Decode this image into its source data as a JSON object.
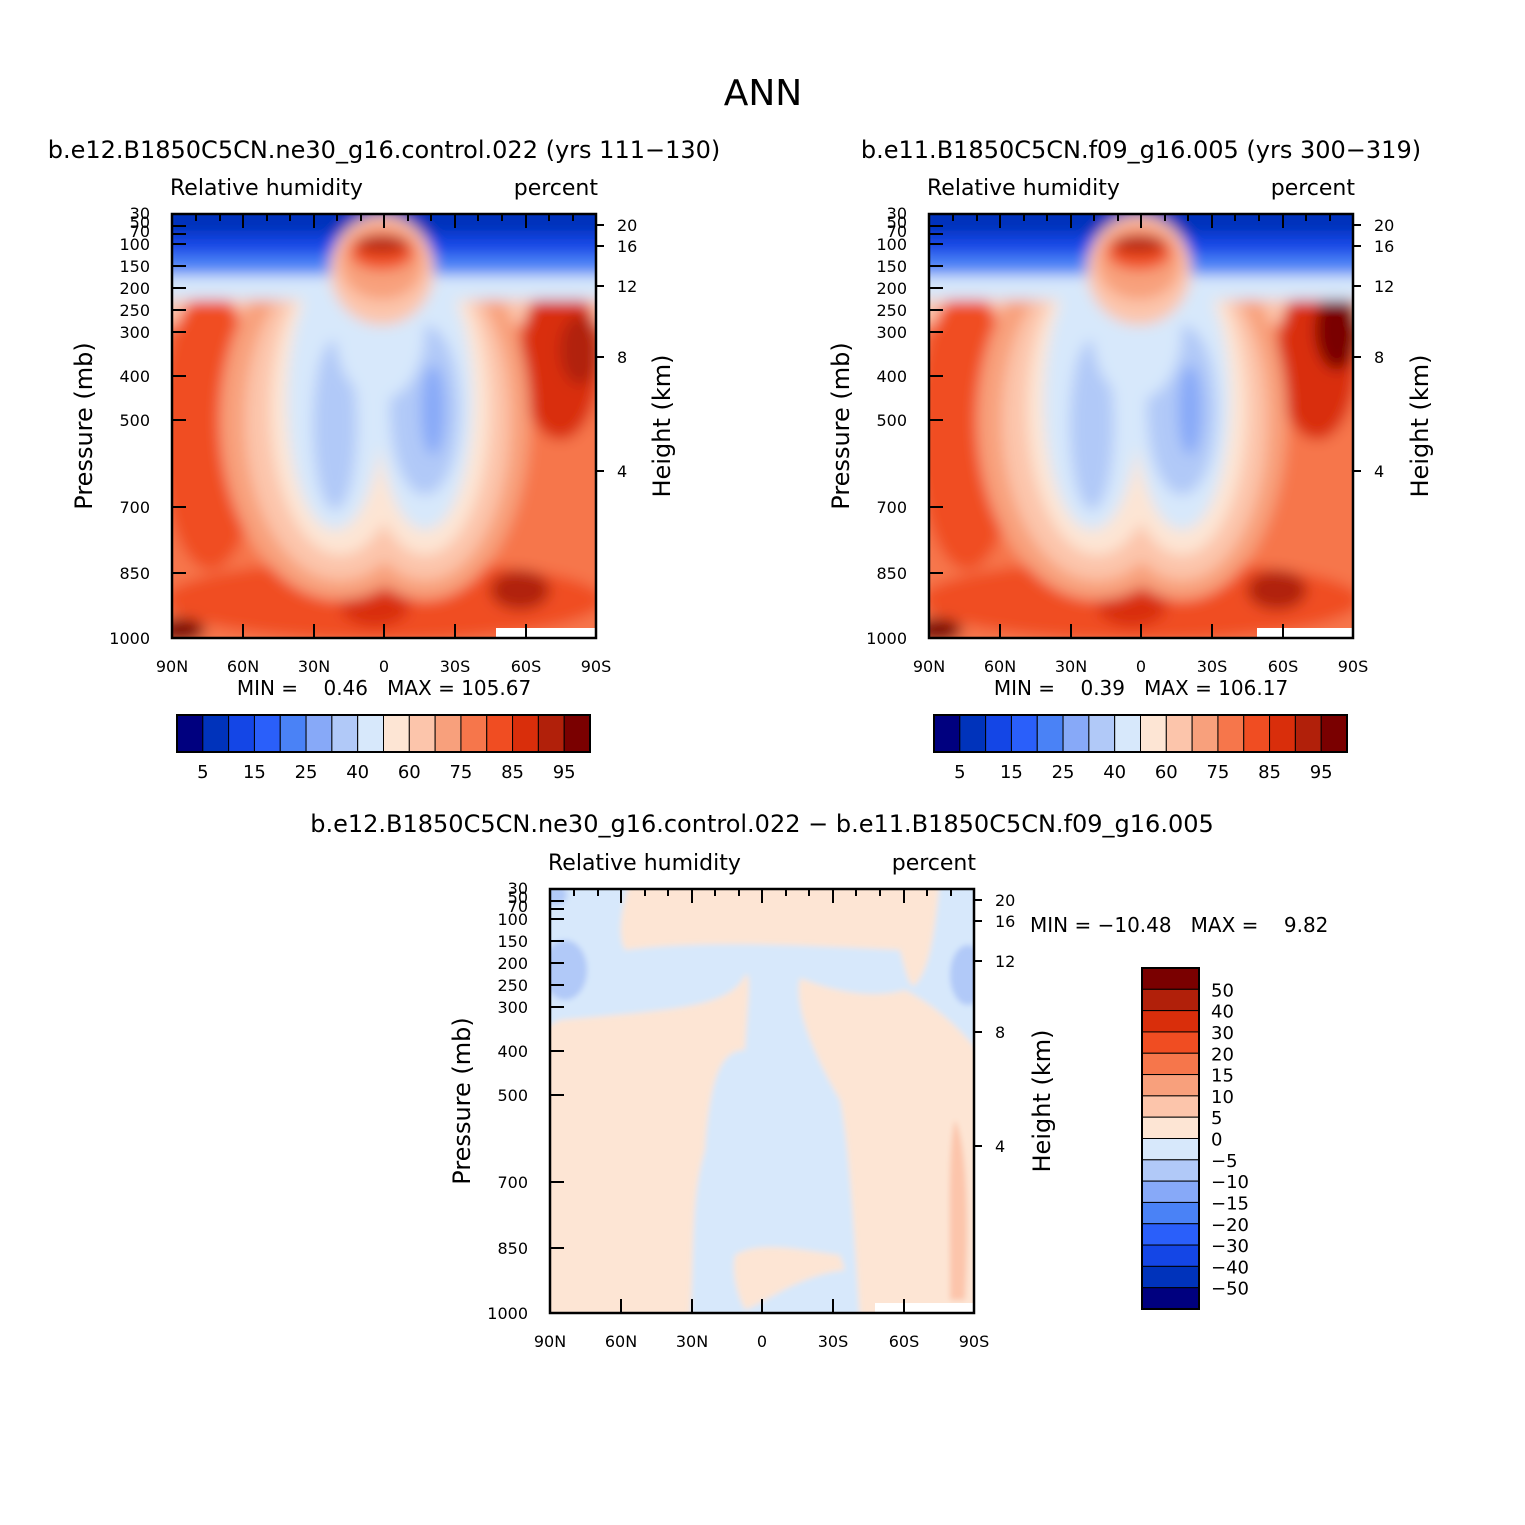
{
  "page": {
    "title": "ANN"
  },
  "chart_data": [
    {
      "type": "heatmap",
      "panel": "left",
      "title": "b.e12.B1850C5CN.ne30_g16.control.022 (yrs 111-130)",
      "variable": "Relative humidity",
      "units": "percent",
      "xlabel": "",
      "ylabel": "Pressure (mb)",
      "ylabel_right": "Height (km)",
      "x_ticks": [
        "90N",
        "60N",
        "30N",
        "0",
        "30S",
        "60S",
        "90S"
      ],
      "y_ticks": [
        "30",
        "50",
        "70",
        "100",
        "150",
        "200",
        "250",
        "300",
        "400",
        "500",
        "700",
        "850",
        "1000"
      ],
      "y_ticks_right": [
        "20",
        "16",
        "12",
        "8",
        "4"
      ],
      "yscale": "log",
      "min_text": "MIN =    0.46   MAX = 105.67",
      "min": 0.46,
      "max": 105.67,
      "colorbar": {
        "orientation": "horizontal",
        "colors": [
          "#00007f",
          "#0033bb",
          "#1446e6",
          "#2a5ffa",
          "#4a82f6",
          "#87a9f8",
          "#b1c9f8",
          "#d7e8fb",
          "#fde5d4",
          "#fcc5ab",
          "#f8a07c",
          "#f6764b",
          "#f04d22",
          "#d92e0b",
          "#b1200a",
          "#7a0000"
        ],
        "labels": [
          "5",
          "15",
          "25",
          "40",
          "60",
          "75",
          "85",
          "95"
        ]
      }
    },
    {
      "type": "heatmap",
      "panel": "right",
      "title": "b.e11.B1850C5CN.f09_g16.005 (yrs 300-319)",
      "variable": "Relative humidity",
      "units": "percent",
      "xlabel": "",
      "ylabel": "Pressure (mb)",
      "ylabel_right": "Height (km)",
      "x_ticks": [
        "90N",
        "60N",
        "30N",
        "0",
        "30S",
        "60S",
        "90S"
      ],
      "y_ticks": [
        "30",
        "50",
        "70",
        "100",
        "150",
        "200",
        "250",
        "300",
        "400",
        "500",
        "700",
        "850",
        "1000"
      ],
      "y_ticks_right": [
        "20",
        "16",
        "12",
        "8",
        "4"
      ],
      "yscale": "log",
      "min_text": "MIN =    0.39   MAX = 106.17",
      "min": 0.39,
      "max": 106.17,
      "colorbar": {
        "orientation": "horizontal",
        "colors": [
          "#00007f",
          "#0033bb",
          "#1446e6",
          "#2a5ffa",
          "#4a82f6",
          "#87a9f8",
          "#b1c9f8",
          "#d7e8fb",
          "#fde5d4",
          "#fcc5ab",
          "#f8a07c",
          "#f6764b",
          "#f04d22",
          "#d92e0b",
          "#b1200a",
          "#7a0000"
        ],
        "labels": [
          "5",
          "15",
          "25",
          "40",
          "60",
          "75",
          "85",
          "95"
        ]
      }
    },
    {
      "type": "heatmap",
      "panel": "difference",
      "title": "b.e12.B1850C5CN.ne30_g16.control.022 - b.e11.B1850C5CN.f09_g16.005",
      "variable": "Relative humidity",
      "units": "percent",
      "xlabel": "",
      "ylabel": "Pressure (mb)",
      "ylabel_right": "Height (km)",
      "x_ticks": [
        "90N",
        "60N",
        "30N",
        "0",
        "30S",
        "60S",
        "90S"
      ],
      "y_ticks": [
        "30",
        "50",
        "70",
        "100",
        "150",
        "200",
        "250",
        "300",
        "400",
        "500",
        "700",
        "850",
        "1000"
      ],
      "y_ticks_right": [
        "20",
        "16",
        "12",
        "8",
        "4"
      ],
      "yscale": "log",
      "min_text": "MIN = -10.48   MAX =    9.82",
      "min": -10.48,
      "max": 9.82,
      "colorbar": {
        "orientation": "vertical",
        "colors": [
          "#7a0000",
          "#b1200a",
          "#d92e0b",
          "#f04d22",
          "#f6764b",
          "#f8a07c",
          "#fcc5ab",
          "#fde5d4",
          "#d7e8fb",
          "#b1c9f8",
          "#87a9f8",
          "#4a82f6",
          "#2a5ffa",
          "#1446e6",
          "#0033bb",
          "#00007f"
        ],
        "labels": [
          "50",
          "40",
          "30",
          "20",
          "15",
          "10",
          "5",
          "0",
          "-5",
          "-10",
          "-15",
          "-20",
          "-30",
          "-40",
          "-50"
        ]
      }
    }
  ]
}
